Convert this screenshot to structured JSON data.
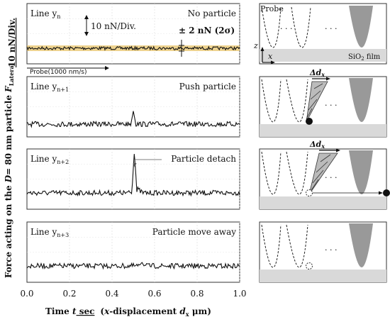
{
  "chart_data": {
    "type": "line",
    "ylabel": "Force acting on the D= 80 nm particle F_Lateral",
    "ylabel_parts": {
      "a": "Force acting on the ",
      "b": "D",
      "c": "= 80 nm particle ",
      "d": "F",
      "e": "Lateral"
    },
    "scale_bar_label": "10 nN/Div.",
    "xlabel": "Time t sec (x-displacement d_x μm)",
    "xlabel_parts": {
      "a": "Time ",
      "b": "t",
      "c": " sec",
      "d": "(",
      "e": "x",
      "f": "-displacement ",
      "g": "d",
      "h": "x",
      "i": " μm)"
    },
    "xticks": [
      "0.0",
      "0.2",
      "0.4",
      "0.6",
      "0.8",
      "1.0"
    ],
    "xlim": [
      0,
      1.0
    ],
    "panels": [
      {
        "line": "Line y",
        "sub": "n",
        "status": "No particle",
        "events": []
      },
      {
        "line": "Line y",
        "sub": "n+1",
        "status": "Push particle",
        "events": [
          {
            "x": 0.5,
            "height": 0.95
          }
        ]
      },
      {
        "line": "Line y",
        "sub": "n+2",
        "status": "Particle detach",
        "events": [
          {
            "x": 0.505,
            "height": 3.0
          }
        ]
      },
      {
        "line": "Line y",
        "sub": "n+3",
        "status": "Particle move away",
        "events": [
          {
            "x": 0.54,
            "height": 0.3
          }
        ]
      }
    ],
    "annotations": {
      "div": "10 nN/Div.",
      "noise": "± 2 nN (2σ)",
      "probe_speed": "Probe(1000 nm/s)",
      "peak_note": "Particle detach"
    },
    "noise_band_color": "#e8c46a"
  },
  "schematic": {
    "probe_label": "Probe",
    "substrate_label": "SiO",
    "substrate_sub": "2",
    "substrate_suffix": " film",
    "axis_z": "z",
    "axis_x": "x",
    "delta_label": "Δd",
    "delta_sub": "x",
    "dots": "· · ·"
  }
}
